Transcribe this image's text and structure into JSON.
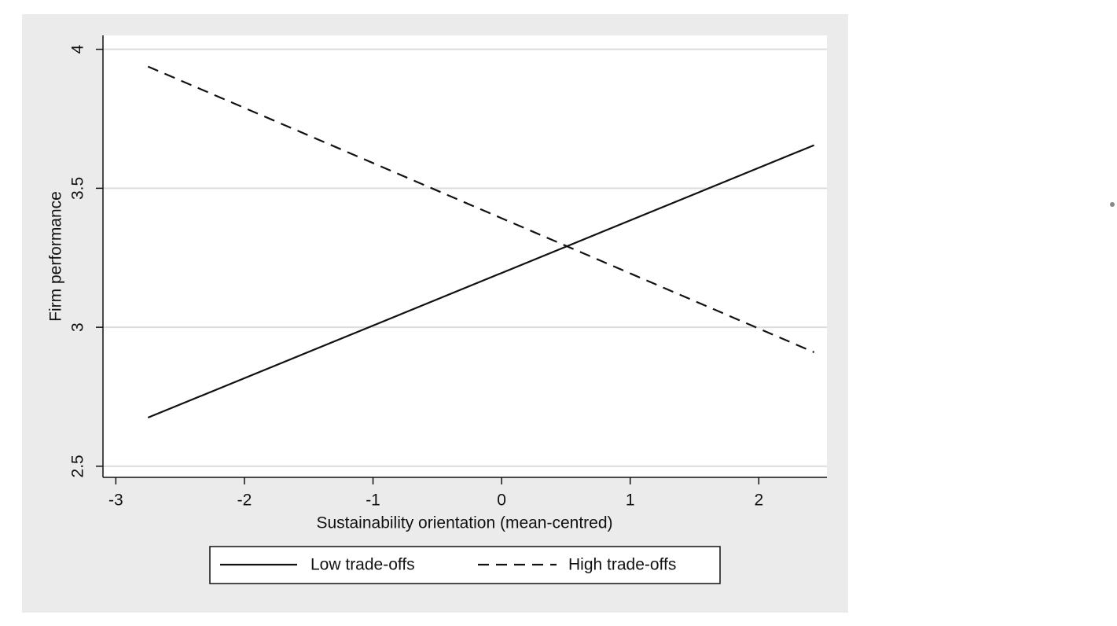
{
  "chart_data": {
    "type": "line",
    "x_label": "Sustainability orientation (mean-centred)",
    "y_label": "Firm performance",
    "x": [
      -2.75,
      2.43
    ],
    "series": [
      {
        "name": "Low trade-offs",
        "color": "#111111",
        "style": "solid",
        "values": [
          2.675,
          3.655
        ]
      },
      {
        "name": "High trade-offs",
        "color": "#111111",
        "style": "dashed",
        "values": [
          3.938,
          2.91
        ]
      }
    ],
    "xlim": [
      -3.1,
      2.53
    ],
    "ylim": [
      2.46,
      4.05
    ],
    "xticks": [
      -3,
      -2,
      -1,
      0,
      1,
      2
    ],
    "yticks": [
      2.5,
      3,
      3.5,
      4
    ],
    "grid": "y",
    "legend": "bottom"
  }
}
